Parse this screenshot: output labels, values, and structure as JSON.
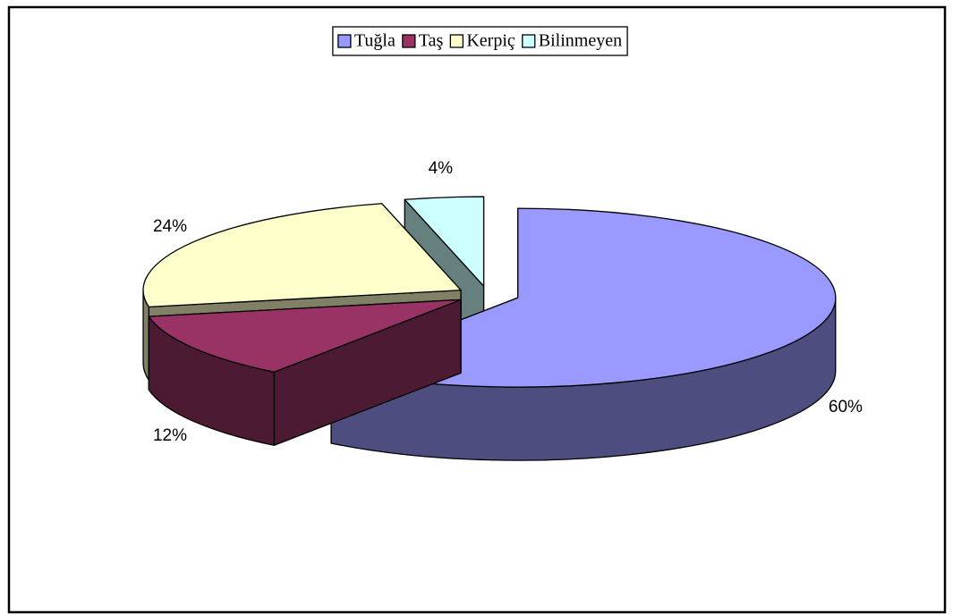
{
  "chart_data": {
    "type": "pie3d",
    "categories": [
      "Tuğla",
      "Taş",
      "Kerpiç",
      "Bilinmeyen"
    ],
    "values": [
      60,
      12,
      24,
      4
    ],
    "value_labels": [
      "60%",
      "12%",
      "24%",
      "4%"
    ],
    "colors": [
      "#9999ff",
      "#993366",
      "#ffffcc",
      "#ccffff"
    ],
    "legend": "top"
  }
}
